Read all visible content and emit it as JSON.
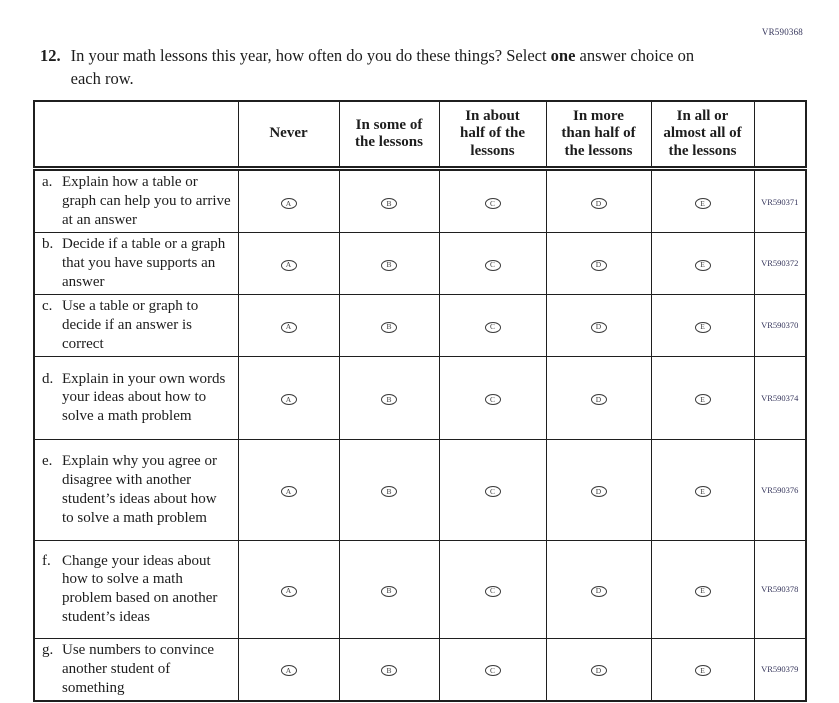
{
  "page": {
    "top_right_code": "VR590368"
  },
  "question": {
    "number": "12.",
    "text_before_bold": "In your math lessons this year, how often do you do these things? Select ",
    "bold_word": "one",
    "text_after_bold": " answer choice on each row."
  },
  "table": {
    "column_headers": [
      "Never",
      "In some of\nthe lessons",
      "In about\nhalf of the\nlessons",
      "In more\nthan half of\nthe lessons",
      "In all or\nalmost all of\nthe lessons"
    ],
    "option_letters": [
      "A",
      "B",
      "C",
      "D",
      "E"
    ],
    "rows": [
      {
        "letter": "a.",
        "label": "Explain how a table or graph can help you to arrive at an answer",
        "code": "VR590371"
      },
      {
        "letter": "b.",
        "label": "Decide if a table or a graph that you have supports an answer",
        "code": "VR590372"
      },
      {
        "letter": "c.",
        "label": "Use a table or graph to decide if an answer is correct",
        "code": "VR590370"
      },
      {
        "letter": "d.",
        "label": "Explain in your own words your ideas about how to solve a math problem",
        "code": "VR590374"
      },
      {
        "letter": "e.",
        "label": "Explain why you agree or disagree with another student’s ideas about how to solve a math problem",
        "code": "VR590376"
      },
      {
        "letter": "f.",
        "label": "Change your ideas about how to solve a math problem based on another student’s ideas",
        "code": "VR590378"
      },
      {
        "letter": "g.",
        "label": "Use numbers to convince another student of something",
        "code": "VR590379"
      }
    ]
  },
  "colors": {
    "text": "#1d1d1d",
    "border": "#1f1f1f",
    "code_text": "#36365c"
  }
}
